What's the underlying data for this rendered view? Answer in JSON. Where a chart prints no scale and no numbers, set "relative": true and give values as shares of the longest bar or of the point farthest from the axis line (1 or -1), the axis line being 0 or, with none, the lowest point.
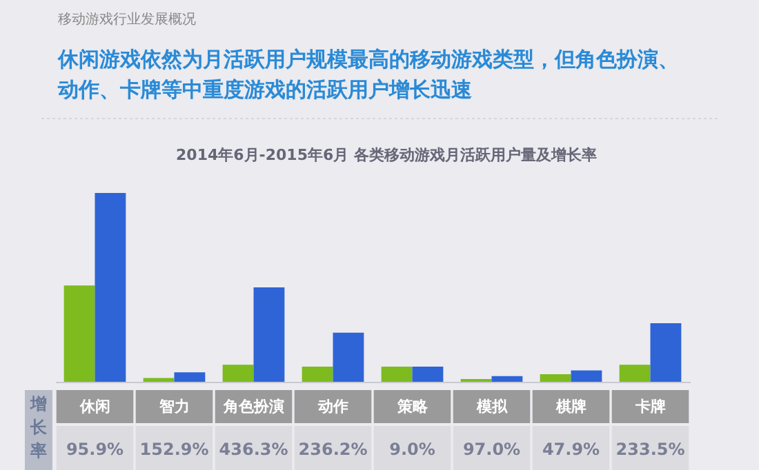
{
  "chart_data": {
    "type": "bar",
    "relative": true,
    "title": "休闲游戏依然为月活跃用户规模最高的移动游戏类型，但角色扮演、动作、卡牌等中重度游戏的活跃用户增长迅速",
    "subtitle": "2014年6月-2015年6月 各类移动游戏月活跃用户量及增长率",
    "categories": [
      "休闲",
      "智力",
      "角色扮演",
      "动作",
      "策略",
      "模拟",
      "棋牌",
      "卡牌"
    ],
    "series": [
      {
        "color": "#7dbb1e",
        "values": [
          0.51,
          0.02,
          0.09,
          0.08,
          0.08,
          0.015,
          0.04,
          0.09
        ]
      },
      {
        "color": "#2f64d6",
        "values": [
          1.0,
          0.05,
          0.5,
          0.26,
          0.08,
          0.03,
          0.06,
          0.31
        ]
      }
    ],
    "annotations": [
      "移动游戏行业发展概况",
      "增长率",
      "95.9%",
      "152.9%",
      "436.3%",
      "236.2%",
      "9.0%",
      "97.0%",
      "47.9%",
      "233.5%"
    ]
  }
}
